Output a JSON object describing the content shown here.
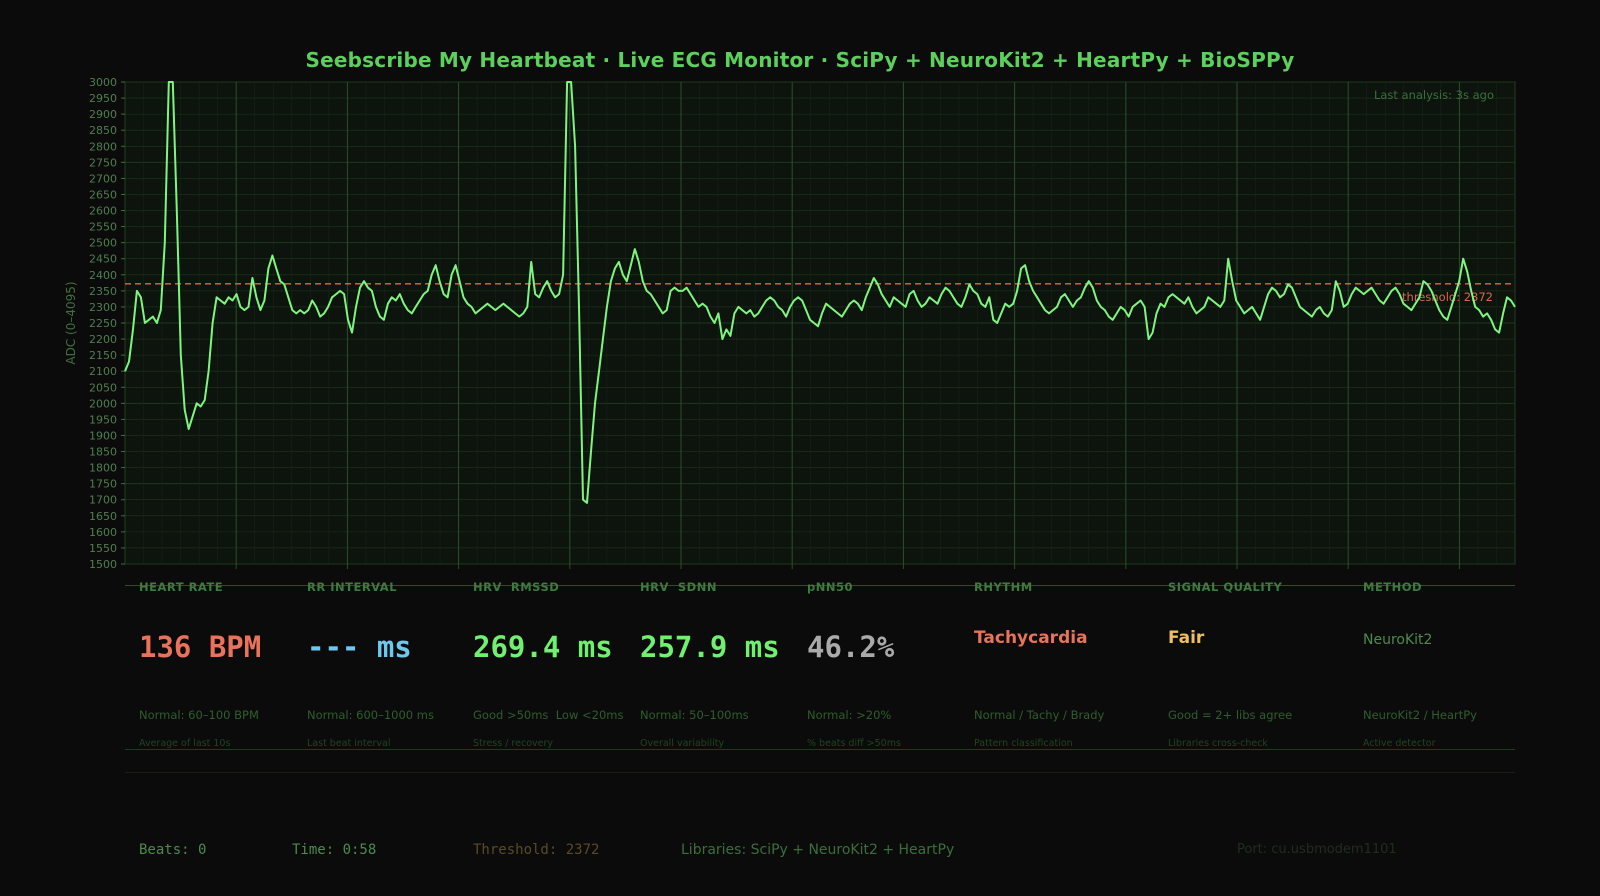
{
  "header": {
    "title": "Seebscribe My Heartbeat  ·  Live ECG Monitor  ·  SciPy + NeuroKit2 + HeartPy + BioSPPy",
    "last_analysis": "Last analysis: 3s ago"
  },
  "chart_data": {
    "type": "line",
    "ylabel": "ADC (0–4095)",
    "ylim": [
      1500,
      3000
    ],
    "ytick_step": 50,
    "grid": true,
    "line_color": "#7ff57f",
    "threshold": {
      "value": 2372,
      "label": "threshold: 2372",
      "color": "#d9684a"
    },
    "series": [
      {
        "values": [
          2100,
          2130,
          2230,
          2350,
          2330,
          2250,
          2260,
          2270,
          2250,
          2290,
          2500,
          3000,
          3000,
          2600,
          2150,
          1980,
          1920,
          1960,
          2000,
          1990,
          2010,
          2100,
          2250,
          2330,
          2320,
          2310,
          2330,
          2320,
          2340,
          2300,
          2290,
          2300,
          2390,
          2330,
          2290,
          2320,
          2420,
          2460,
          2420,
          2380,
          2370,
          2330,
          2290,
          2280,
          2290,
          2280,
          2290,
          2320,
          2300,
          2270,
          2280,
          2300,
          2330,
          2340,
          2350,
          2340,
          2260,
          2220,
          2300,
          2360,
          2380,
          2360,
          2350,
          2300,
          2270,
          2260,
          2310,
          2330,
          2320,
          2340,
          2310,
          2290,
          2280,
          2300,
          2320,
          2340,
          2350,
          2400,
          2430,
          2380,
          2340,
          2330,
          2400,
          2430,
          2380,
          2330,
          2310,
          2300,
          2280,
          2290,
          2300,
          2310,
          2300,
          2290,
          2300,
          2310,
          2300,
          2290,
          2280,
          2270,
          2280,
          2300,
          2440,
          2340,
          2330,
          2360,
          2380,
          2350,
          2330,
          2340,
          2400,
          3000,
          3000,
          2800,
          2300,
          1700,
          1690,
          1850,
          2000,
          2100,
          2200,
          2300,
          2380,
          2420,
          2440,
          2400,
          2380,
          2430,
          2480,
          2440,
          2380,
          2350,
          2340,
          2320,
          2300,
          2280,
          2290,
          2350,
          2360,
          2350,
          2350,
          2360,
          2340,
          2320,
          2300,
          2310,
          2300,
          2270,
          2250,
          2280,
          2200,
          2230,
          2210,
          2280,
          2300,
          2290,
          2280,
          2290,
          2270,
          2280,
          2300,
          2320,
          2330,
          2320,
          2300,
          2290,
          2270,
          2300,
          2320,
          2330,
          2320,
          2290,
          2260,
          2250,
          2240,
          2280,
          2310,
          2300,
          2290,
          2280,
          2270,
          2290,
          2310,
          2320,
          2310,
          2290,
          2330,
          2360,
          2390,
          2370,
          2340,
          2320,
          2300,
          2330,
          2320,
          2310,
          2300,
          2340,
          2350,
          2320,
          2300,
          2310,
          2330,
          2320,
          2310,
          2340,
          2360,
          2350,
          2330,
          2310,
          2300,
          2330,
          2370,
          2350,
          2340,
          2310,
          2300,
          2330,
          2260,
          2250,
          2280,
          2310,
          2300,
          2310,
          2350,
          2420,
          2430,
          2380,
          2350,
          2330,
          2310,
          2290,
          2280,
          2290,
          2300,
          2330,
          2340,
          2320,
          2300,
          2320,
          2330,
          2360,
          2380,
          2360,
          2320,
          2300,
          2290,
          2270,
          2260,
          2280,
          2300,
          2290,
          2270,
          2300,
          2310,
          2320,
          2300,
          2200,
          2220,
          2280,
          2310,
          2300,
          2330,
          2340,
          2330,
          2320,
          2310,
          2330,
          2300,
          2280,
          2290,
          2300,
          2330,
          2320,
          2310,
          2300,
          2320,
          2450,
          2380,
          2320,
          2300,
          2280,
          2290,
          2300,
          2280,
          2260,
          2300,
          2340,
          2360,
          2350,
          2330,
          2340,
          2370,
          2360,
          2330,
          2300,
          2290,
          2280,
          2270,
          2290,
          2300,
          2280,
          2270,
          2290,
          2380,
          2350,
          2300,
          2310,
          2340,
          2360,
          2350,
          2340,
          2350,
          2360,
          2340,
          2320,
          2310,
          2330,
          2350,
          2360,
          2340,
          2310,
          2300,
          2290,
          2310,
          2330,
          2380,
          2370,
          2350,
          2320,
          2290,
          2270,
          2260,
          2300,
          2340,
          2380,
          2450,
          2410,
          2350,
          2300,
          2290,
          2270,
          2280,
          2260,
          2230,
          2220,
          2280,
          2330,
          2320,
          2300
        ]
      }
    ]
  },
  "metrics": [
    {
      "label": "HEART RATE",
      "value": "136 BPM",
      "color": "#e8735a",
      "sub": "Normal: 60–100 BPM",
      "note": "Average of last 10s"
    },
    {
      "label": "RR INTERVAL",
      "value": "--- ms",
      "color": "#6ec8ee",
      "sub": "Normal: 600–1000 ms",
      "note": "Last beat interval"
    },
    {
      "label": "HRV  RMSSD",
      "value": "269.4 ms",
      "color": "#6ff06f",
      "sub": "Good >50ms  Low <20ms",
      "note": "Stress / recovery"
    },
    {
      "label": "HRV  SDNN",
      "value": "257.9 ms",
      "color": "#6ff06f",
      "sub": "Normal: 50–100ms",
      "note": "Overall variability"
    },
    {
      "label": "pNN50",
      "value": "46.2%",
      "color": "#aaaaaa",
      "sub": "Normal: >20%",
      "note": "% beats diff >50ms"
    },
    {
      "label": "RHYTHM",
      "value": "Tachycardia",
      "color": "#e8735a",
      "sub": "Normal / Tachy / Brady",
      "note": "Pattern classification"
    },
    {
      "label": "SIGNAL QUALITY",
      "value": "Fair",
      "color": "#f0c060",
      "sub": "Good = 2+ libs agree",
      "note": "Libraries cross-check"
    },
    {
      "label": "METHOD",
      "value": "NeuroKit2",
      "color": "#4e8a4e",
      "sub": "NeuroKit2 / HeartPy",
      "note": "Active detector"
    }
  ],
  "status_bar": {
    "beats": "Beats: 0",
    "time": "Time: 0:58",
    "threshold": "Threshold: 2372",
    "libraries": "Libraries: SciPy + NeuroKit2 + HeartPy",
    "port": "Port: cu.usbmodem1101"
  },
  "colors": {
    "background": "#0b0b0b",
    "plot_background": "#0d130d",
    "grid": "#1b3a1b",
    "accent": "#5ccf5c"
  }
}
